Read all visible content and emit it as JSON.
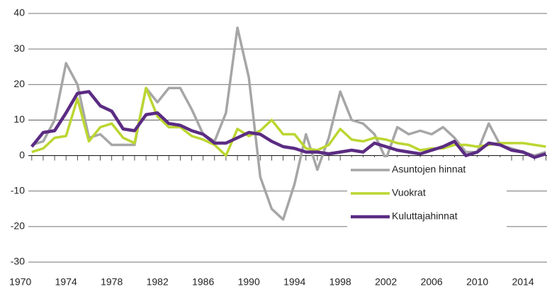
{
  "chart_data": {
    "type": "line",
    "x": [
      1971,
      1972,
      1973,
      1974,
      1975,
      1976,
      1977,
      1978,
      1979,
      1980,
      1981,
      1982,
      1983,
      1984,
      1985,
      1986,
      1987,
      1988,
      1989,
      1990,
      1991,
      1992,
      1993,
      1994,
      1995,
      1996,
      1997,
      1998,
      1999,
      2000,
      2001,
      2002,
      2003,
      2004,
      2005,
      2006,
      2007,
      2008,
      2009,
      2010,
      2011,
      2012,
      2013,
      2014,
      2015,
      2016
    ],
    "series": [
      {
        "name": "Asuntojen hinnat",
        "color": "#a6a6a6",
        "values": [
          3,
          4,
          10,
          26,
          20,
          5,
          6,
          3,
          3,
          3,
          19,
          15,
          19,
          19,
          13,
          6,
          4,
          12,
          36,
          22,
          -6,
          -15,
          -18,
          -8,
          6,
          -4,
          5,
          18,
          10,
          9,
          6,
          -1,
          8,
          6,
          7,
          6,
          8,
          5,
          1,
          1,
          9,
          3,
          2,
          1,
          0,
          1
        ]
      },
      {
        "name": "Vuokrat",
        "color": "#bcd631",
        "values": [
          1,
          2,
          5,
          5.5,
          16,
          4,
          8,
          9,
          5,
          3.5,
          19,
          11,
          8,
          8,
          5.5,
          4.5,
          3,
          0,
          7.5,
          5.5,
          7,
          10,
          6,
          6,
          2,
          1.5,
          3,
          7.5,
          4.5,
          4,
          5,
          4.5,
          3.5,
          3,
          1.5,
          2,
          2,
          3,
          3,
          2.5,
          3,
          3.5,
          3.5,
          3.5,
          3,
          2.5
        ]
      },
      {
        "name": "Kuluttajahinnat",
        "color": "#5b2c83",
        "values": [
          2.5,
          6.5,
          7,
          12,
          17.5,
          18,
          14,
          12.5,
          7.5,
          7,
          11.5,
          12,
          9,
          8.5,
          7,
          6,
          3.5,
          3.5,
          5,
          6.5,
          6,
          4,
          2.5,
          2,
          1,
          1,
          0.5,
          1,
          1.5,
          1,
          3.5,
          2.5,
          1.5,
          1,
          0.5,
          1.5,
          2.5,
          4,
          0,
          1,
          3.5,
          3,
          1.5,
          1,
          -0.5,
          0.5
        ]
      }
    ],
    "xlim": [
      1970.7,
      2016.1
    ],
    "xticks": [
      1970,
      1974,
      1978,
      1982,
      1986,
      1990,
      1994,
      1998,
      2002,
      2006,
      2010,
      2014
    ],
    "ylim": [
      -30,
      40
    ],
    "yticks": [
      -30,
      -20,
      -10,
      0,
      10,
      20,
      30,
      40
    ],
    "grid": true,
    "legend": "right"
  }
}
